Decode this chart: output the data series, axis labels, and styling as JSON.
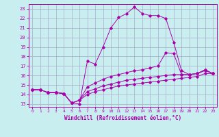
{
  "xlabel": "Windchill (Refroidissement éolien,°C)",
  "bg_color": "#c8eef0",
  "line_color": "#aa00aa",
  "grid_color": "#aaaacc",
  "xlim": [
    -0.5,
    23.5
  ],
  "ylim": [
    12.7,
    23.5
  ],
  "yticks": [
    13,
    14,
    15,
    16,
    17,
    18,
    19,
    20,
    21,
    22,
    23
  ],
  "xticks": [
    0,
    1,
    2,
    3,
    4,
    5,
    6,
    7,
    8,
    9,
    10,
    11,
    12,
    13,
    14,
    15,
    16,
    17,
    18,
    19,
    20,
    21,
    22,
    23
  ],
  "line1_x": [
    0,
    1,
    2,
    3,
    4,
    5,
    6,
    7,
    8,
    9,
    10,
    11,
    12,
    13,
    14,
    15,
    16,
    17,
    18,
    19,
    20,
    21,
    22,
    23
  ],
  "line1_y": [
    14.5,
    14.5,
    14.2,
    14.2,
    14.1,
    13.1,
    13.0,
    17.5,
    17.2,
    19.0,
    21.0,
    22.1,
    22.5,
    23.2,
    22.5,
    22.3,
    22.3,
    22.0,
    19.5,
    16.5,
    16.1,
    16.2,
    16.6,
    16.2
  ],
  "line2_x": [
    0,
    1,
    2,
    3,
    4,
    5,
    6,
    7,
    8,
    9,
    10,
    11,
    12,
    13,
    14,
    15,
    16,
    17,
    18,
    19,
    20,
    21,
    22,
    23
  ],
  "line2_y": [
    14.5,
    14.5,
    14.2,
    14.2,
    14.1,
    13.1,
    13.4,
    14.8,
    15.2,
    15.6,
    15.9,
    16.1,
    16.3,
    16.5,
    16.6,
    16.8,
    17.0,
    18.4,
    18.3,
    16.1,
    16.1,
    16.2,
    16.6,
    16.2
  ],
  "line3_x": [
    0,
    1,
    2,
    3,
    4,
    5,
    6,
    7,
    8,
    9,
    10,
    11,
    12,
    13,
    14,
    15,
    16,
    17,
    18,
    19,
    20,
    21,
    22,
    23
  ],
  "line3_y": [
    14.5,
    14.5,
    14.2,
    14.2,
    14.1,
    13.1,
    13.4,
    14.3,
    14.6,
    14.9,
    15.1,
    15.3,
    15.5,
    15.6,
    15.7,
    15.8,
    15.9,
    16.0,
    16.1,
    16.1,
    16.1,
    16.2,
    16.5,
    16.2
  ],
  "line4_x": [
    0,
    1,
    2,
    3,
    4,
    5,
    6,
    7,
    8,
    9,
    10,
    11,
    12,
    13,
    14,
    15,
    16,
    17,
    18,
    19,
    20,
    21,
    22,
    23
  ],
  "line4_y": [
    14.5,
    14.5,
    14.2,
    14.2,
    14.1,
    13.1,
    13.4,
    14.0,
    14.3,
    14.5,
    14.7,
    14.9,
    15.0,
    15.1,
    15.2,
    15.3,
    15.4,
    15.5,
    15.6,
    15.7,
    15.8,
    15.9,
    16.2,
    16.2
  ]
}
